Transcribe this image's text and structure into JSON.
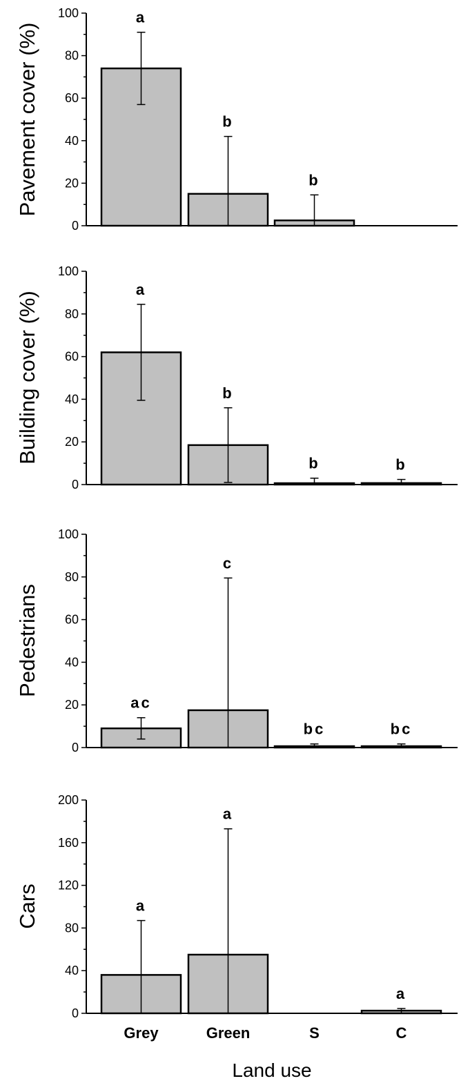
{
  "chart_data": [
    {
      "type": "bar",
      "categories": [
        "Grey",
        "Green",
        "S",
        "C"
      ],
      "values": [
        74,
        15,
        2.5,
        0
      ],
      "errors": [
        17,
        27,
        12,
        0
      ],
      "labels": [
        "a",
        "b",
        "b",
        ""
      ],
      "ylabel": "Pavement cover (%)",
      "ylim": [
        0,
        100
      ],
      "yticks": [
        0,
        20,
        40,
        60,
        80,
        100
      ],
      "xlabel": ""
    },
    {
      "type": "bar",
      "categories": [
        "Grey",
        "Green",
        "S",
        "C"
      ],
      "values": [
        62,
        18.5,
        0.5,
        0.7
      ],
      "errors": [
        22.5,
        17.5,
        2.5,
        1.7
      ],
      "labels": [
        "a",
        "b",
        "b",
        "b"
      ],
      "ylabel": "Building cover (%)",
      "ylim": [
        0,
        100
      ],
      "yticks": [
        0,
        20,
        40,
        60,
        80,
        100
      ],
      "xlabel": ""
    },
    {
      "type": "bar",
      "categories": [
        "Grey",
        "Green",
        "S",
        "C"
      ],
      "values": [
        9,
        17.5,
        0.5,
        0.5
      ],
      "errors": [
        5,
        62,
        1.2,
        1.2
      ],
      "labels": [
        "ac",
        "c",
        "bc",
        "bc"
      ],
      "ylabel": "Pedestrians",
      "ylim": [
        0,
        100
      ],
      "yticks": [
        0,
        20,
        40,
        60,
        80,
        100
      ],
      "xlabel": ""
    },
    {
      "type": "bar",
      "categories": [
        "Grey",
        "Green",
        "S",
        "C"
      ],
      "values": [
        36,
        55,
        0,
        2.5
      ],
      "errors": [
        51,
        118,
        0,
        2
      ],
      "labels": [
        "a",
        "a",
        "",
        "a"
      ],
      "ylabel": "Cars",
      "ylim": [
        0,
        200
      ],
      "yticks": [
        0,
        40,
        80,
        120,
        160,
        200
      ],
      "xlabel": "Land use"
    }
  ]
}
